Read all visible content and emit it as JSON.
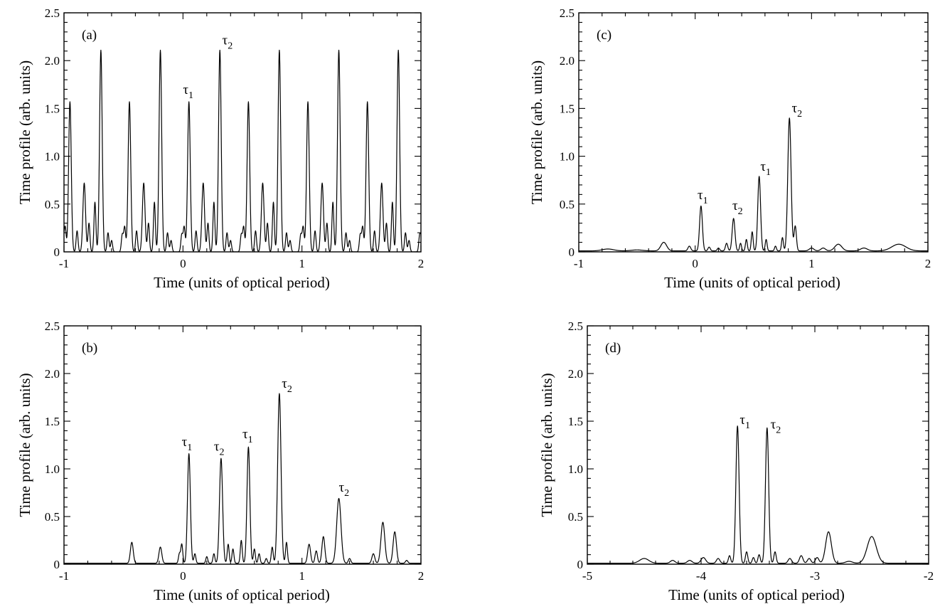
{
  "chart_data": [
    {
      "id": "a",
      "type": "line",
      "panel_label": "(a)",
      "xlabel": "Time (units of optical period)",
      "ylabel": "Time profile (arb. units)",
      "xlim": [
        -1,
        2
      ],
      "ylim": [
        0,
        2.5
      ],
      "x_ticks": [
        -1,
        0,
        1,
        2
      ],
      "x_tick_labels": [
        "-1",
        "0",
        "1",
        "2"
      ],
      "y_ticks": [
        0,
        0.5,
        1.0,
        1.5,
        2.0,
        2.5
      ],
      "y_tick_labels": [
        "0",
        "0.5",
        "1.0",
        "1.5",
        "2.0",
        "2.5"
      ],
      "baseline": 0.0,
      "periodic": {
        "period": 0.5,
        "from": -1,
        "to": 2
      },
      "peaks": [
        {
          "x": 0.05,
          "y": 1.57,
          "w": 0.011
        },
        {
          "x": 0.31,
          "y": 2.11,
          "w": 0.011
        },
        {
          "x": 0.17,
          "y": 0.72,
          "w": 0.011
        },
        {
          "x": 0.21,
          "y": 0.3,
          "w": 0.008
        },
        {
          "x": 0.26,
          "y": 0.52,
          "w": 0.008
        },
        {
          "x": -0.01,
          "y": 0.18,
          "w": 0.008
        },
        {
          "x": 0.01,
          "y": 0.26,
          "w": 0.008
        },
        {
          "x": 0.11,
          "y": 0.22,
          "w": 0.008
        },
        {
          "x": 0.37,
          "y": 0.2,
          "w": 0.008
        },
        {
          "x": 0.4,
          "y": 0.12,
          "w": 0.008
        }
      ],
      "annotations": [
        {
          "text": "τ",
          "sub": "1",
          "x": 0.0,
          "y": 1.65
        },
        {
          "text": "τ",
          "sub": "2",
          "x": 0.33,
          "y": 2.17
        }
      ]
    },
    {
      "id": "b",
      "type": "line",
      "panel_label": "(b)",
      "xlabel": "Time (units of optical period)",
      "ylabel": "Time profile (arb. units)",
      "xlim": [
        -1,
        2
      ],
      "ylim": [
        0,
        2.5
      ],
      "x_ticks": [
        -1,
        0,
        1,
        2
      ],
      "x_tick_labels": [
        "-1",
        "0",
        "1",
        "2"
      ],
      "y_ticks": [
        0,
        0.5,
        1.0,
        1.5,
        2.0,
        2.5
      ],
      "y_tick_labels": [
        "0",
        "0.5",
        "1.0",
        "1.5",
        "2.0",
        "2.5"
      ],
      "baseline": 0.01,
      "peaks": [
        {
          "x": -0.43,
          "y": 0.22,
          "w": 0.012
        },
        {
          "x": -0.19,
          "y": 0.17,
          "w": 0.012
        },
        {
          "x": -0.03,
          "y": 0.1,
          "w": 0.008
        },
        {
          "x": -0.01,
          "y": 0.2,
          "w": 0.008
        },
        {
          "x": 0.05,
          "y": 1.15,
          "w": 0.012
        },
        {
          "x": 0.1,
          "y": 0.1,
          "w": 0.008
        },
        {
          "x": 0.2,
          "y": 0.07,
          "w": 0.008
        },
        {
          "x": 0.26,
          "y": 0.1,
          "w": 0.008
        },
        {
          "x": 0.32,
          "y": 1.1,
          "w": 0.013
        },
        {
          "x": 0.38,
          "y": 0.2,
          "w": 0.008
        },
        {
          "x": 0.42,
          "y": 0.15,
          "w": 0.008
        },
        {
          "x": 0.49,
          "y": 0.24,
          "w": 0.008
        },
        {
          "x": 0.55,
          "y": 1.22,
          "w": 0.012
        },
        {
          "x": 0.6,
          "y": 0.15,
          "w": 0.008
        },
        {
          "x": 0.64,
          "y": 0.1,
          "w": 0.008
        },
        {
          "x": 0.7,
          "y": 0.05,
          "w": 0.008
        },
        {
          "x": 0.75,
          "y": 0.17,
          "w": 0.008
        },
        {
          "x": 0.81,
          "y": 1.78,
          "w": 0.014
        },
        {
          "x": 0.87,
          "y": 0.22,
          "w": 0.008
        },
        {
          "x": 1.06,
          "y": 0.2,
          "w": 0.012
        },
        {
          "x": 1.12,
          "y": 0.13,
          "w": 0.01
        },
        {
          "x": 1.18,
          "y": 0.28,
          "w": 0.012
        },
        {
          "x": 1.31,
          "y": 0.68,
          "w": 0.018
        },
        {
          "x": 1.4,
          "y": 0.05,
          "w": 0.01
        },
        {
          "x": 1.6,
          "y": 0.1,
          "w": 0.012
        },
        {
          "x": 1.68,
          "y": 0.43,
          "w": 0.016
        },
        {
          "x": 1.78,
          "y": 0.33,
          "w": 0.014
        },
        {
          "x": 1.88,
          "y": 0.03,
          "w": 0.01
        }
      ],
      "annotations": [
        {
          "text": "τ",
          "sub": "1",
          "x": -0.01,
          "y": 1.24
        },
        {
          "text": "τ",
          "sub": "2",
          "x": 0.26,
          "y": 1.19
        },
        {
          "text": "τ",
          "sub": "1",
          "x": 0.5,
          "y": 1.32
        },
        {
          "text": "τ",
          "sub": "2",
          "x": 0.83,
          "y": 1.85
        },
        {
          "text": "τ",
          "sub": "2",
          "x": 1.31,
          "y": 0.76
        }
      ]
    },
    {
      "id": "c",
      "type": "line",
      "panel_label": "(c)",
      "xlabel": "Time (units of optical period)",
      "ylabel": "Time profile (arb. units)",
      "xlim": [
        -1,
        2
      ],
      "ylim": [
        0,
        2.5
      ],
      "x_ticks": [
        -1,
        0,
        1,
        2
      ],
      "x_tick_labels": [
        "-1",
        "0",
        "1",
        "2"
      ],
      "y_ticks": [
        0,
        0.5,
        1.0,
        1.5,
        2.0,
        2.5
      ],
      "y_tick_labels": [
        "0",
        "0.5",
        "1.0",
        "1.5",
        "2.0",
        "2.5"
      ],
      "baseline": 0.01,
      "peaks": [
        {
          "x": -0.75,
          "y": 0.02,
          "w": 0.05
        },
        {
          "x": -0.5,
          "y": 0.01,
          "w": 0.05
        },
        {
          "x": -0.27,
          "y": 0.09,
          "w": 0.025
        },
        {
          "x": -0.05,
          "y": 0.05,
          "w": 0.012
        },
        {
          "x": 0.05,
          "y": 0.47,
          "w": 0.012
        },
        {
          "x": 0.12,
          "y": 0.04,
          "w": 0.01
        },
        {
          "x": 0.2,
          "y": 0.03,
          "w": 0.01
        },
        {
          "x": 0.27,
          "y": 0.08,
          "w": 0.01
        },
        {
          "x": 0.33,
          "y": 0.34,
          "w": 0.012
        },
        {
          "x": 0.39,
          "y": 0.08,
          "w": 0.008
        },
        {
          "x": 0.44,
          "y": 0.12,
          "w": 0.008
        },
        {
          "x": 0.49,
          "y": 0.2,
          "w": 0.008
        },
        {
          "x": 0.55,
          "y": 0.78,
          "w": 0.012
        },
        {
          "x": 0.61,
          "y": 0.12,
          "w": 0.008
        },
        {
          "x": 0.69,
          "y": 0.05,
          "w": 0.008
        },
        {
          "x": 0.75,
          "y": 0.14,
          "w": 0.008
        },
        {
          "x": 0.81,
          "y": 1.39,
          "w": 0.014
        },
        {
          "x": 0.86,
          "y": 0.26,
          "w": 0.01
        },
        {
          "x": 1.0,
          "y": 0.03,
          "w": 0.02
        },
        {
          "x": 1.1,
          "y": 0.03,
          "w": 0.02
        },
        {
          "x": 1.23,
          "y": 0.07,
          "w": 0.03
        },
        {
          "x": 1.45,
          "y": 0.03,
          "w": 0.03
        },
        {
          "x": 1.75,
          "y": 0.07,
          "w": 0.06
        }
      ],
      "annotations": [
        {
          "text": "τ",
          "sub": "1",
          "x": 0.02,
          "y": 0.55
        },
        {
          "text": "τ",
          "sub": "2",
          "x": 0.32,
          "y": 0.44
        },
        {
          "text": "τ",
          "sub": "1",
          "x": 0.56,
          "y": 0.85
        },
        {
          "text": "τ",
          "sub": "2",
          "x": 0.83,
          "y": 1.46
        }
      ]
    },
    {
      "id": "d",
      "type": "line",
      "panel_label": "(d)",
      "xlabel": "Time (units of optical period)",
      "ylabel": "Time profile (arb. units)",
      "xlim": [
        -5,
        -2
      ],
      "ylim": [
        0,
        2.5
      ],
      "x_ticks": [
        -5,
        -4,
        -3,
        -2
      ],
      "x_tick_labels": [
        "-5",
        "-4",
        "-3",
        "-2"
      ],
      "y_ticks": [
        0,
        0.5,
        1.0,
        1.5,
        2.0,
        2.5
      ],
      "y_tick_labels": [
        "0",
        "0.5",
        "1.0",
        "1.5",
        "2.0",
        "2.5"
      ],
      "baseline": 0.01,
      "peaks": [
        {
          "x": -4.5,
          "y": 0.05,
          "w": 0.04
        },
        {
          "x": -4.25,
          "y": 0.03,
          "w": 0.02
        },
        {
          "x": -4.1,
          "y": 0.03,
          "w": 0.02
        },
        {
          "x": -3.98,
          "y": 0.06,
          "w": 0.02
        },
        {
          "x": -3.85,
          "y": 0.05,
          "w": 0.015
        },
        {
          "x": -3.75,
          "y": 0.08,
          "w": 0.01
        },
        {
          "x": -3.68,
          "y": 1.44,
          "w": 0.014
        },
        {
          "x": -3.6,
          "y": 0.12,
          "w": 0.01
        },
        {
          "x": -3.54,
          "y": 0.06,
          "w": 0.01
        },
        {
          "x": -3.49,
          "y": 0.09,
          "w": 0.01
        },
        {
          "x": -3.42,
          "y": 1.42,
          "w": 0.014
        },
        {
          "x": -3.35,
          "y": 0.12,
          "w": 0.01
        },
        {
          "x": -3.22,
          "y": 0.05,
          "w": 0.015
        },
        {
          "x": -3.12,
          "y": 0.08,
          "w": 0.015
        },
        {
          "x": -3.05,
          "y": 0.05,
          "w": 0.015
        },
        {
          "x": -2.98,
          "y": 0.06,
          "w": 0.015
        },
        {
          "x": -2.88,
          "y": 0.33,
          "w": 0.025
        },
        {
          "x": -2.7,
          "y": 0.02,
          "w": 0.03
        },
        {
          "x": -2.5,
          "y": 0.28,
          "w": 0.04
        }
      ],
      "annotations": [
        {
          "text": "τ",
          "sub": "1",
          "x": -3.66,
          "y": 1.47
        },
        {
          "text": "τ",
          "sub": "2",
          "x": -3.39,
          "y": 1.42
        }
      ]
    }
  ]
}
